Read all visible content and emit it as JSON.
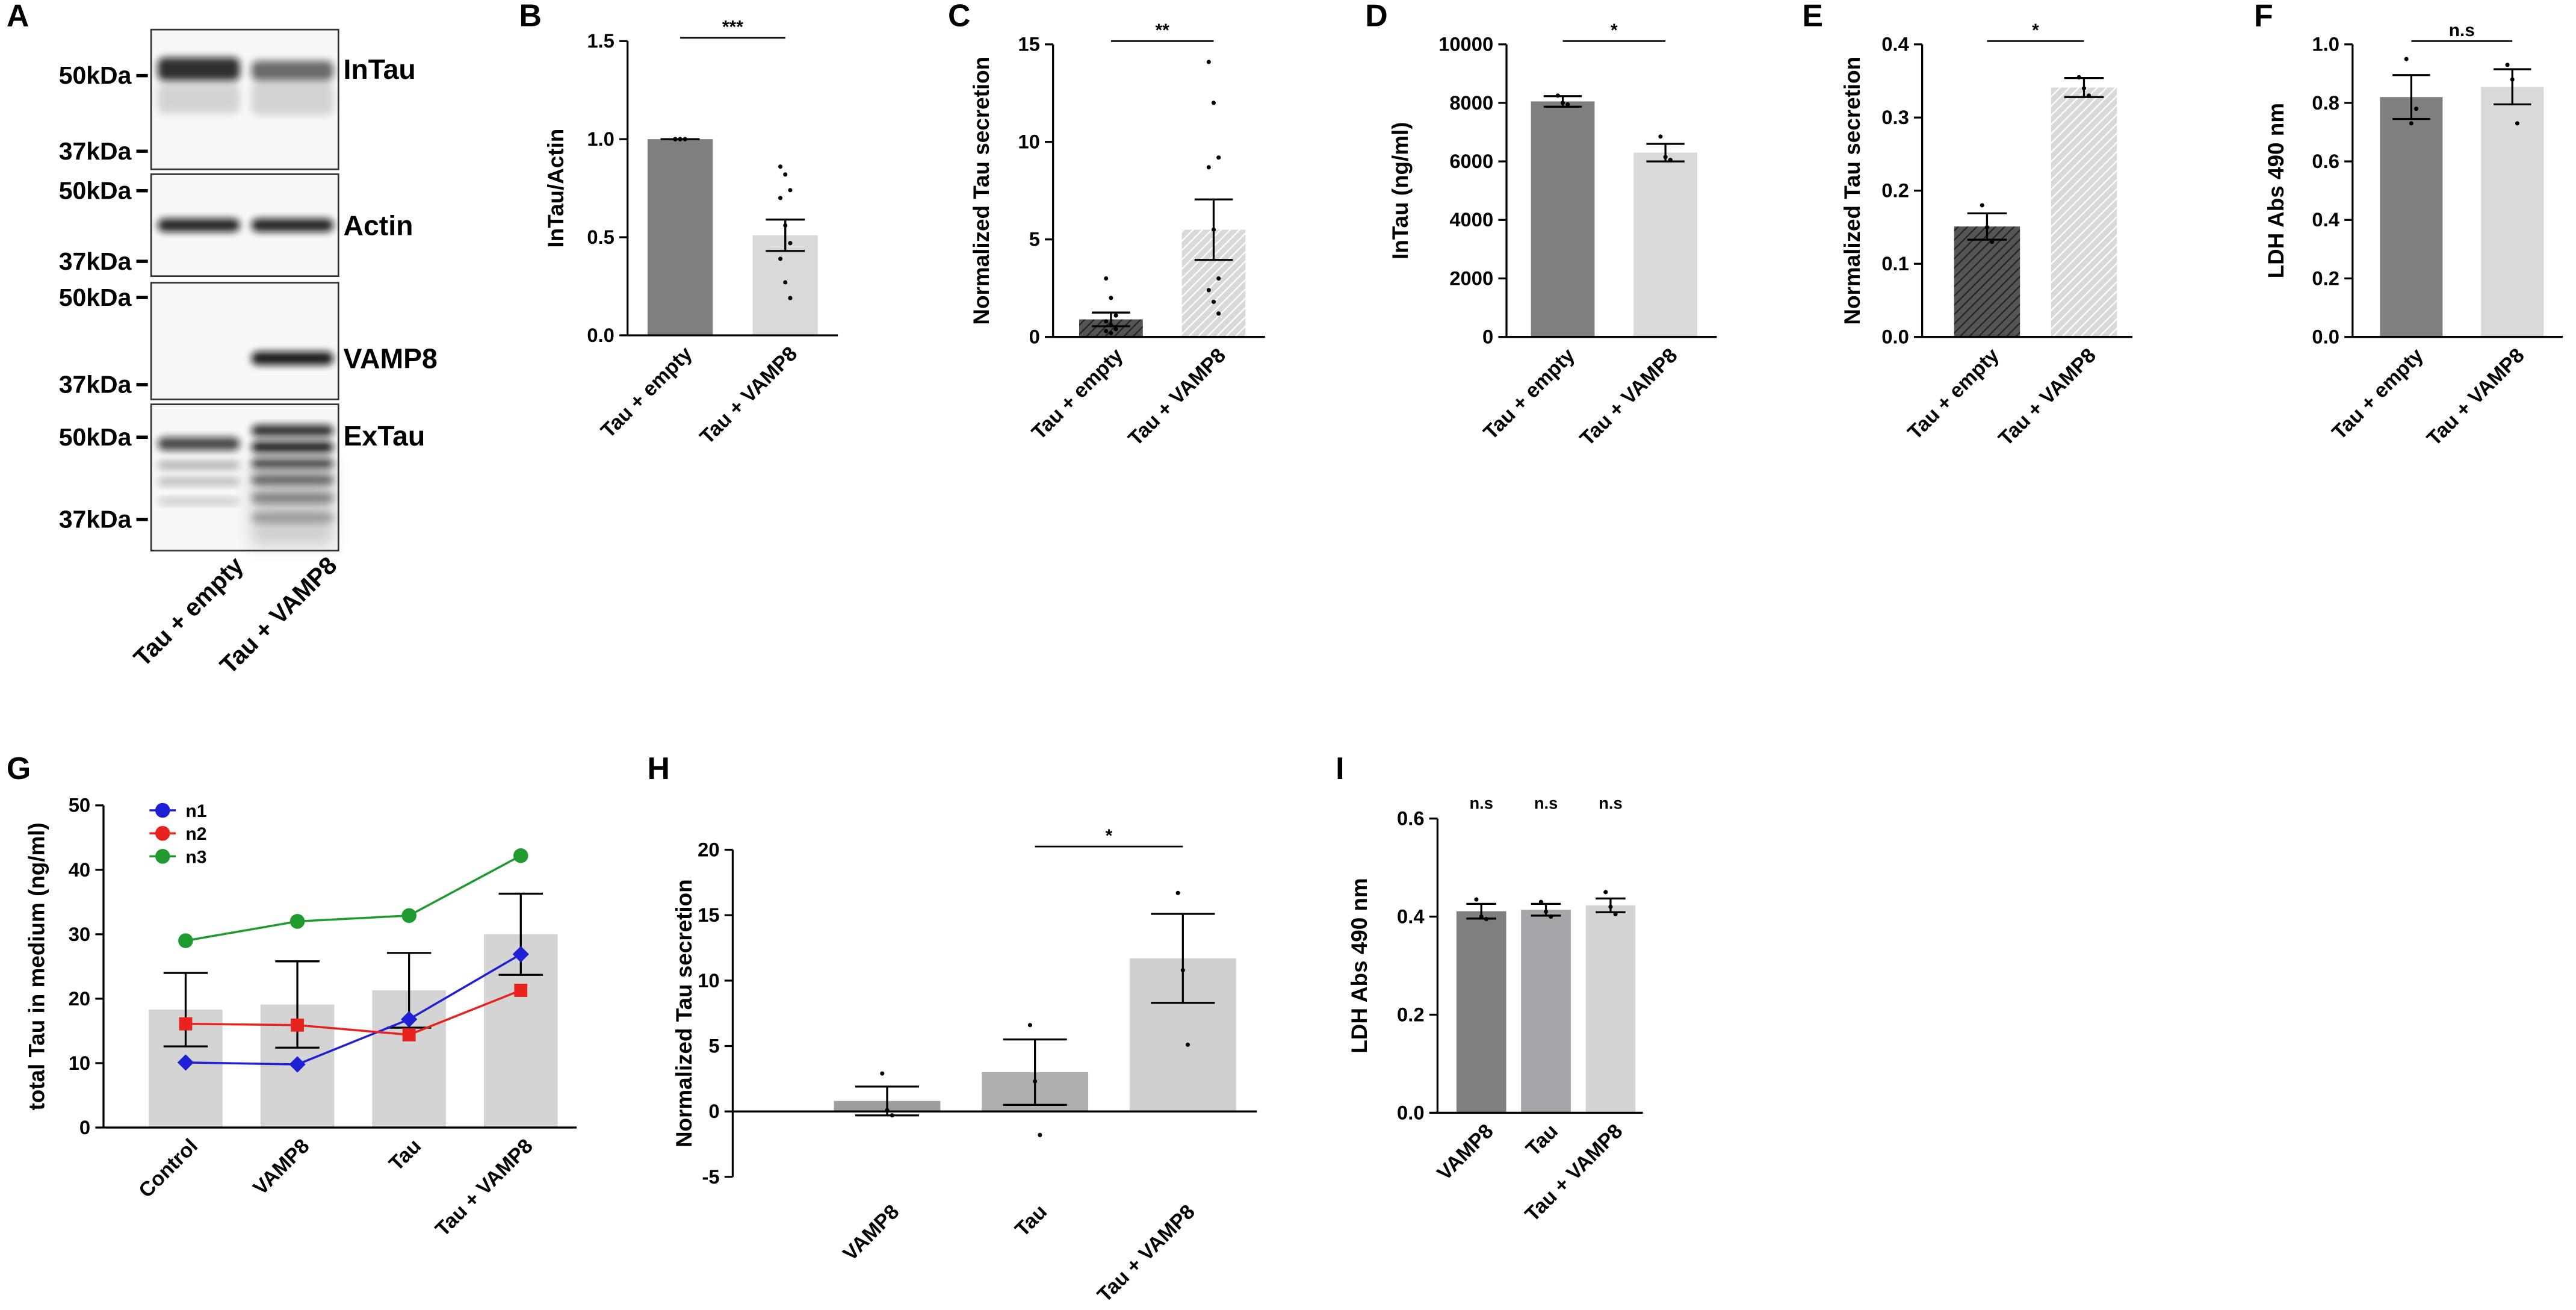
{
  "chart_data": [
    {
      "type": "blot",
      "panel": "A",
      "lanes": [
        "Tau + empty",
        "Tau + VAMP8"
      ],
      "rows": [
        {
          "name": "InTau",
          "markers": [
            "50kDa",
            "37kDa"
          ]
        },
        {
          "name": "Actin",
          "markers": [
            "50kDa",
            "37kDa"
          ]
        },
        {
          "name": "VAMP8",
          "markers": [
            "50kDa",
            "37kDa"
          ]
        },
        {
          "name": "ExTau",
          "markers": [
            "50kDa",
            "37kDa"
          ]
        }
      ]
    },
    {
      "type": "bar",
      "panel": "B",
      "ylabel": "InTau/Actin",
      "categories": [
        "Tau + empty",
        "Tau + VAMP8"
      ],
      "values": [
        1.0,
        0.51
      ],
      "errors": [
        0,
        0.08
      ],
      "points": [
        [
          1,
          1,
          1,
          1,
          1,
          1,
          1,
          1,
          1
        ],
        [
          0.86,
          0.82,
          0.74,
          0.7,
          0.56,
          0.47,
          0.39,
          0.27,
          0.19
        ]
      ],
      "colors": [
        "#7f7f7f",
        "#d9d9d9"
      ],
      "hatch": false,
      "ylim": [
        0,
        1.5
      ],
      "yticks": [
        {
          "value": 0,
          "label": "0.0"
        },
        0.5,
        {
          "value": 1,
          "label": "1.0"
        },
        1.5
      ],
      "annotations": [
        {
          "text": "***",
          "bars": [
            0,
            1
          ]
        }
      ]
    },
    {
      "type": "bar",
      "panel": "C",
      "ylabel": "Normalized Tau secretion",
      "categories": [
        "Tau + empty",
        "Tau + VAMP8"
      ],
      "values": [
        0.9,
        5.5
      ],
      "errors": [
        0.35,
        1.55
      ],
      "points": [
        [
          3.0,
          2.0,
          1.1,
          0.8,
          0.6,
          0.4,
          0.3,
          0.2
        ],
        [
          14.1,
          12.0,
          9.2,
          8.7,
          5.5,
          3.0,
          2.4,
          1.8,
          1.2
        ]
      ],
      "colors": [
        "#555555",
        "#d9d9d9"
      ],
      "hatch": true,
      "ylim": [
        0,
        15
      ],
      "yticks": [
        0,
        5,
        10,
        15
      ],
      "annotations": [
        {
          "text": "**",
          "bars": [
            0,
            1
          ]
        }
      ]
    },
    {
      "type": "bar",
      "panel": "D",
      "ylabel": "InTau (ng/ml)",
      "categories": [
        "Tau + empty",
        "Tau + VAMP8"
      ],
      "values": [
        8050,
        6300
      ],
      "errors": [
        180,
        300
      ],
      "points": [
        [
          8250,
          8000,
          7950
        ],
        [
          6850,
          6150,
          6050
        ]
      ],
      "colors": [
        "#7f7f7f",
        "#d9d9d9"
      ],
      "hatch": false,
      "ylim": [
        0,
        10000
      ],
      "yticks": [
        0,
        2000,
        4000,
        6000,
        8000,
        10000
      ],
      "annotations": [
        {
          "text": "*",
          "bars": [
            0,
            1
          ]
        }
      ]
    },
    {
      "type": "bar",
      "panel": "E",
      "ylabel": "Normalized Tau secretion",
      "categories": [
        "Tau + empty",
        "Tau + VAMP8"
      ],
      "values": [
        0.151,
        0.341
      ],
      "errors": [
        0.018,
        0.013
      ],
      "points": [
        [
          0.18,
          0.15,
          0.13
        ],
        [
          0.355,
          0.34,
          0.33
        ]
      ],
      "colors": [
        "#555555",
        "#d9d9d9"
      ],
      "hatch": true,
      "ylim": [
        0,
        0.4
      ],
      "yticks": [
        {
          "value": 0,
          "label": "0.0"
        },
        0.1,
        0.2,
        0.3,
        0.4
      ],
      "annotations": [
        {
          "text": "*",
          "bars": [
            0,
            1
          ]
        }
      ]
    },
    {
      "type": "bar",
      "panel": "F",
      "ylabel": "LDH Abs 490 nm",
      "categories": [
        "Tau + empty",
        "Tau + VAMP8"
      ],
      "values": [
        0.82,
        0.855
      ],
      "errors": [
        0.075,
        0.06
      ],
      "points": [
        [
          0.95,
          0.73,
          0.78
        ],
        [
          0.93,
          0.88,
          0.73
        ]
      ],
      "colors": [
        "#7f7f7f",
        "#d9d9d9"
      ],
      "hatch": false,
      "ylim": [
        0,
        1.0
      ],
      "yticks": [
        {
          "value": 0,
          "label": "0.0"
        },
        0.2,
        0.4,
        0.6,
        0.8,
        {
          "value": 1,
          "label": "1.0"
        }
      ],
      "annotations": [
        {
          "text": "n.s",
          "bars": [
            0,
            1
          ]
        }
      ]
    },
    {
      "type": "bar-line",
      "panel": "G",
      "ylabel": "total Tau in medium (ng/ml)",
      "categories": [
        "Control",
        "VAMP8",
        "Tau",
        "Tau + VAMP8"
      ],
      "values": [
        18.3,
        19.1,
        21.3,
        30.0
      ],
      "errors": [
        5.7,
        6.7,
        5.8,
        6.3
      ],
      "colors": [
        "#d4d4d4",
        "#d4d4d4",
        "#d4d4d4",
        "#d4d4d4"
      ],
      "hatch": false,
      "series": [
        {
          "name": "n1",
          "color": "#1f1fd6",
          "marker": "diamond",
          "values": [
            10.1,
            9.8,
            16.8,
            26.9
          ]
        },
        {
          "name": "n2",
          "color": "#e8231f",
          "marker": "square",
          "values": [
            16.1,
            15.9,
            14.4,
            21.3
          ]
        },
        {
          "name": "n3",
          "color": "#1f9a2e",
          "marker": "circle",
          "values": [
            29.0,
            32.0,
            32.9,
            42.2
          ]
        }
      ],
      "legend": "top-left",
      "ylim": [
        0,
        50
      ],
      "yticks": [
        0,
        10,
        20,
        30,
        40,
        50
      ]
    },
    {
      "type": "bar",
      "panel": "H",
      "ylabel": "Normalized Tau secretion",
      "categories": [
        "VAMP8",
        "Tau",
        "Tau + VAMP8"
      ],
      "values": [
        0.8,
        3.0,
        11.7
      ],
      "errors": [
        1.1,
        2.5,
        3.4
      ],
      "points": [
        [
          2.9,
          0.1,
          -0.3
        ],
        [
          6.6,
          2.3,
          -1.8
        ],
        [
          16.7,
          10.8,
          5.1
        ]
      ],
      "colors": [
        "#9e9e9e",
        "#b0b0b0",
        "#cfcfcf"
      ],
      "hatch": false,
      "ylim": [
        -5,
        20
      ],
      "yticks": [
        -5,
        0,
        5,
        10,
        15,
        20
      ],
      "annotations": [
        {
          "text": "*",
          "bars": [
            1,
            2
          ]
        }
      ]
    },
    {
      "type": "bar",
      "panel": "I",
      "ylabel": "LDH Abs 490 nm",
      "categories": [
        "VAMP8",
        "Tau",
        "Tau + VAMP8"
      ],
      "values": [
        0.411,
        0.414,
        0.423
      ],
      "errors": [
        0.015,
        0.012,
        0.014
      ],
      "points": [
        [
          0.435,
          0.4,
          0.395
        ],
        [
          0.43,
          0.41,
          0.4
        ],
        [
          0.45,
          0.42,
          0.405
        ]
      ],
      "colors": [
        "#7f7f7f",
        "#a6a6aa",
        "#d4d4d4"
      ],
      "hatch": false,
      "ylim": [
        0,
        0.6
      ],
      "yticks": [
        {
          "value": 0,
          "label": "0.0"
        },
        0.2,
        0.4,
        0.6
      ],
      "annotations": [
        {
          "text": "n.s",
          "bars": [
            0
          ]
        },
        {
          "text": "n.s",
          "bars": [
            1
          ]
        },
        {
          "text": "n.s",
          "bars": [
            2
          ]
        }
      ]
    }
  ]
}
